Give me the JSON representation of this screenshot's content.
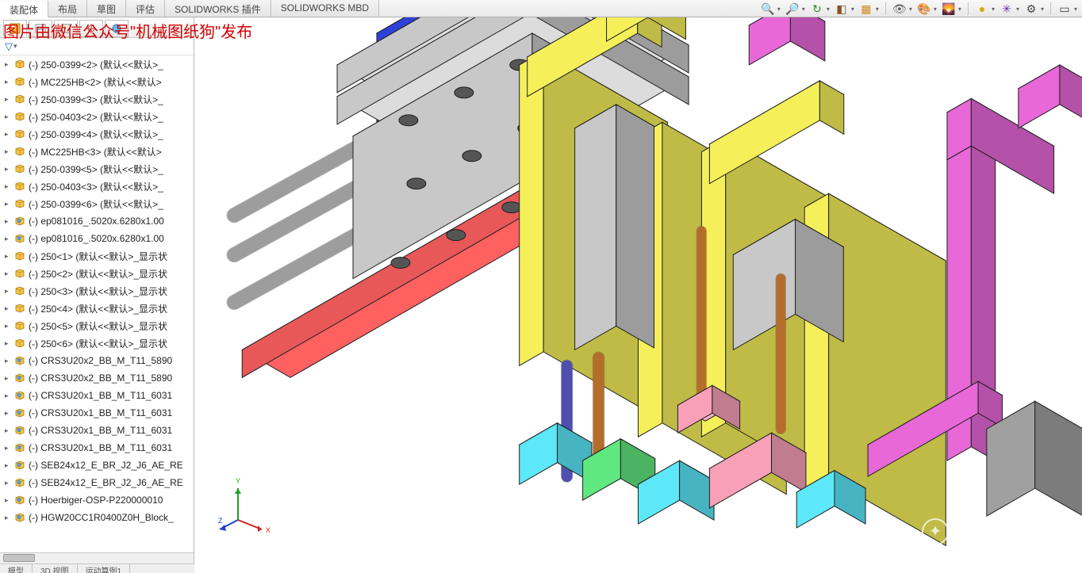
{
  "tabs": [
    {
      "label": "装配体",
      "active": true
    },
    {
      "label": "布局",
      "active": false
    },
    {
      "label": "草图",
      "active": false
    },
    {
      "label": "评估",
      "active": false
    },
    {
      "label": "SOLIDWORKS 插件",
      "active": false
    },
    {
      "label": "SOLIDWORKS MBD",
      "active": false
    }
  ],
  "watermark": "图片由微信公众号\"机械图纸狗\"发布",
  "watermark2": "机械图纸狗",
  "feature_tree": {
    "items": [
      {
        "type": "part",
        "label": "(-) 250-0399<2> (默认<<默认>_"
      },
      {
        "type": "part",
        "label": "(-) MC225HB<2> (默认<<默认>"
      },
      {
        "type": "part",
        "label": "(-) 250-0399<3> (默认<<默认>_"
      },
      {
        "type": "part",
        "label": "(-) 250-0403<2> (默认<<默认>_"
      },
      {
        "type": "part",
        "label": "(-) 250-0399<4> (默认<<默认>_"
      },
      {
        "type": "part",
        "label": "(-) MC225HB<3> (默认<<默认>"
      },
      {
        "type": "part",
        "label": "(-) 250-0399<5> (默认<<默认>_"
      },
      {
        "type": "part",
        "label": "(-) 250-0403<3> (默认<<默认>_"
      },
      {
        "type": "part",
        "label": "(-) 250-0399<6> (默认<<默认>_"
      },
      {
        "type": "asm",
        "label": "(-) ep081016_.5020x.6280x1.00"
      },
      {
        "type": "asm",
        "label": "(-) ep081016_.5020x.6280x1.00"
      },
      {
        "type": "part",
        "label": "(-) 250<1> (默认<<默认>_显示状"
      },
      {
        "type": "part",
        "label": "(-) 250<2> (默认<<默认>_显示状"
      },
      {
        "type": "part",
        "label": "(-) 250<3> (默认<<默认>_显示状"
      },
      {
        "type": "part",
        "label": "(-) 250<4> (默认<<默认>_显示状"
      },
      {
        "type": "part",
        "label": "(-) 250<5> (默认<<默认>_显示状"
      },
      {
        "type": "part",
        "label": "(-) 250<6> (默认<<默认>_显示状"
      },
      {
        "type": "asm",
        "label": "(-) CRS3U20x2_BB_M_T11_5890"
      },
      {
        "type": "asm",
        "label": "(-) CRS3U20x2_BB_M_T11_5890"
      },
      {
        "type": "asm",
        "label": "(-) CRS3U20x1_BB_M_T11_6031"
      },
      {
        "type": "asm",
        "label": "(-) CRS3U20x1_BB_M_T11_6031"
      },
      {
        "type": "asm",
        "label": "(-) CRS3U20x1_BB_M_T11_6031"
      },
      {
        "type": "asm",
        "label": "(-) CRS3U20x1_BB_M_T11_6031"
      },
      {
        "type": "asm",
        "label": "(-) SEB24x12_E_BR_J2_J6_AE_RE"
      },
      {
        "type": "asm",
        "label": "(-) SEB24x12_E_BR_J2_J6_AE_RE"
      },
      {
        "type": "asm",
        "label": "(-) Hoerbiger-OSP-P220000010"
      },
      {
        "type": "asm",
        "label": "(-) HGW20CC1R0400Z0H_Block_"
      }
    ]
  },
  "bottom_tabs": [
    "模型",
    "3D 视图",
    "运动算例1"
  ],
  "toolbar_icons": [
    {
      "name": "zoom-fit-icon",
      "glyph": "🔍",
      "color": "#3a7ad6"
    },
    {
      "name": "zoom-area-icon",
      "glyph": "🔎",
      "color": "#3a7ad6"
    },
    {
      "name": "orbit-icon",
      "glyph": "↻",
      "color": "#2a9020"
    },
    {
      "name": "section-icon",
      "glyph": "◧",
      "color": "#8a5028"
    },
    {
      "name": "display-style-icon",
      "glyph": "▦",
      "color": "#d08820"
    },
    {
      "name": "sep",
      "glyph": "",
      "color": ""
    },
    {
      "name": "hide-show-icon",
      "glyph": "👁",
      "color": "#5a5a5a"
    },
    {
      "name": "edit-appearance-icon",
      "glyph": "🎨",
      "color": "#cc3333"
    },
    {
      "name": "scene-icon",
      "glyph": "🌄",
      "color": "#2a9020"
    },
    {
      "name": "sep",
      "glyph": "",
      "color": ""
    },
    {
      "name": "render-icon",
      "glyph": "●",
      "color": "#d8a800"
    },
    {
      "name": "apply-scene-icon",
      "glyph": "✳",
      "color": "#6a2ab0"
    },
    {
      "name": "view-settings-icon",
      "glyph": "⚙",
      "color": "#444"
    },
    {
      "name": "sep",
      "glyph": "",
      "color": ""
    },
    {
      "name": "viewport-icon",
      "glyph": "▭",
      "color": "#444"
    }
  ],
  "triad": {
    "x_color": "#cc2020",
    "y_color": "#20a020",
    "z_color": "#2040cc"
  },
  "model_colors": {
    "bracket_yellow": "#f5f05a",
    "bracket_magenta": "#e868d8",
    "block_cyan": "#5ce8f8",
    "block_green": "#60e880",
    "plate_grey": "#c8c8c8",
    "plate_grey_dark": "#a0a0a0",
    "rod_blue": "#6060e0",
    "rod_orange": "#e88830",
    "beam_brown": "#8a5028",
    "plate_red": "#e85858",
    "plate_pink": "#f8a0b8",
    "plate_blue": "#3040d8",
    "edge": "#202020"
  }
}
